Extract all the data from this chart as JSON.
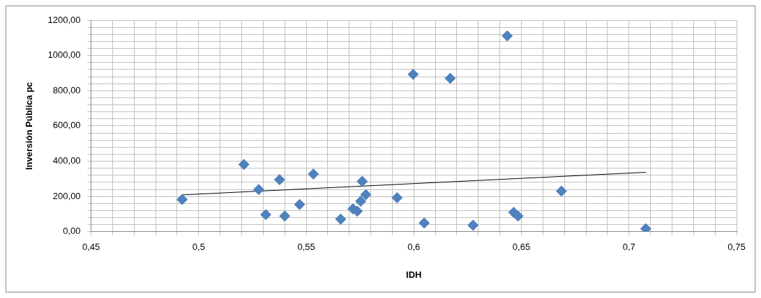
{
  "chart_data": {
    "type": "scatter",
    "xlabel": "IDH",
    "ylabel": "Inversión Pública pc",
    "grid": true,
    "legend": false,
    "marker": "diamond",
    "xlim": [
      0.45,
      0.75
    ],
    "ylim": [
      0,
      1200
    ],
    "xticks": [
      {
        "value": 0.45,
        "label": "0,45"
      },
      {
        "value": 0.46,
        "label": null
      },
      {
        "value": 0.47,
        "label": null
      },
      {
        "value": 0.48,
        "label": null
      },
      {
        "value": 0.49,
        "label": null
      },
      {
        "value": 0.5,
        "label": "0,5"
      },
      {
        "value": 0.51,
        "label": null
      },
      {
        "value": 0.52,
        "label": null
      },
      {
        "value": 0.53,
        "label": null
      },
      {
        "value": 0.54,
        "label": null
      },
      {
        "value": 0.55,
        "label": "0,55"
      },
      {
        "value": 0.56,
        "label": null
      },
      {
        "value": 0.57,
        "label": null
      },
      {
        "value": 0.58,
        "label": null
      },
      {
        "value": 0.59,
        "label": null
      },
      {
        "value": 0.6,
        "label": "0,6"
      },
      {
        "value": 0.61,
        "label": null
      },
      {
        "value": 0.62,
        "label": null
      },
      {
        "value": 0.63,
        "label": null
      },
      {
        "value": 0.64,
        "label": null
      },
      {
        "value": 0.65,
        "label": "0,65"
      },
      {
        "value": 0.66,
        "label": null
      },
      {
        "value": 0.67,
        "label": null
      },
      {
        "value": 0.68,
        "label": null
      },
      {
        "value": 0.69,
        "label": null
      },
      {
        "value": 0.7,
        "label": "0,7"
      },
      {
        "value": 0.71,
        "label": null
      },
      {
        "value": 0.72,
        "label": null
      },
      {
        "value": 0.73,
        "label": null
      },
      {
        "value": 0.74,
        "label": null
      },
      {
        "value": 0.75,
        "label": "0,75"
      }
    ],
    "yticks": [
      {
        "value": 0,
        "label": "0,00"
      },
      {
        "value": 40,
        "label": null
      },
      {
        "value": 80,
        "label": null
      },
      {
        "value": 120,
        "label": null
      },
      {
        "value": 160,
        "label": null
      },
      {
        "value": 200,
        "label": "200,00"
      },
      {
        "value": 240,
        "label": null
      },
      {
        "value": 280,
        "label": null
      },
      {
        "value": 320,
        "label": null
      },
      {
        "value": 360,
        "label": null
      },
      {
        "value": 400,
        "label": "400,00"
      },
      {
        "value": 440,
        "label": null
      },
      {
        "value": 480,
        "label": null
      },
      {
        "value": 520,
        "label": null
      },
      {
        "value": 560,
        "label": null
      },
      {
        "value": 600,
        "label": "600,00"
      },
      {
        "value": 640,
        "label": null
      },
      {
        "value": 680,
        "label": null
      },
      {
        "value": 720,
        "label": null
      },
      {
        "value": 760,
        "label": null
      },
      {
        "value": 800,
        "label": "800,00"
      },
      {
        "value": 840,
        "label": null
      },
      {
        "value": 880,
        "label": null
      },
      {
        "value": 920,
        "label": null
      },
      {
        "value": 960,
        "label": null
      },
      {
        "value": 1000,
        "label": "1000,00"
      },
      {
        "value": 1040,
        "label": null
      },
      {
        "value": 1080,
        "label": null
      },
      {
        "value": 1120,
        "label": null
      },
      {
        "value": 1160,
        "label": null
      },
      {
        "value": 1200,
        "label": "1200,00"
      }
    ],
    "series": [
      {
        "color": "#4f81bd",
        "x": [
          0.4923,
          0.521,
          0.5279,
          0.5312,
          0.5376,
          0.54,
          0.5469,
          0.5533,
          0.566,
          0.5717,
          0.5737,
          0.5753,
          0.576,
          0.5777,
          0.5922,
          0.5997,
          0.6169,
          0.6434,
          0.6048,
          0.6275,
          0.6464,
          0.6484,
          0.6686,
          0.7078
        ],
        "values": [
          183,
          381,
          239,
          97,
          295,
          89,
          154,
          327,
          71,
          130,
          117,
          173,
          286,
          211,
          193,
          893,
          870,
          1111,
          50,
          37,
          110,
          89,
          230,
          17
        ]
      },
      {
        "type": "line",
        "marker": "none",
        "color": "#000000",
        "x": [
          0.4923,
          0.7078
        ],
        "values": [
          209,
          337
        ]
      }
    ]
  }
}
